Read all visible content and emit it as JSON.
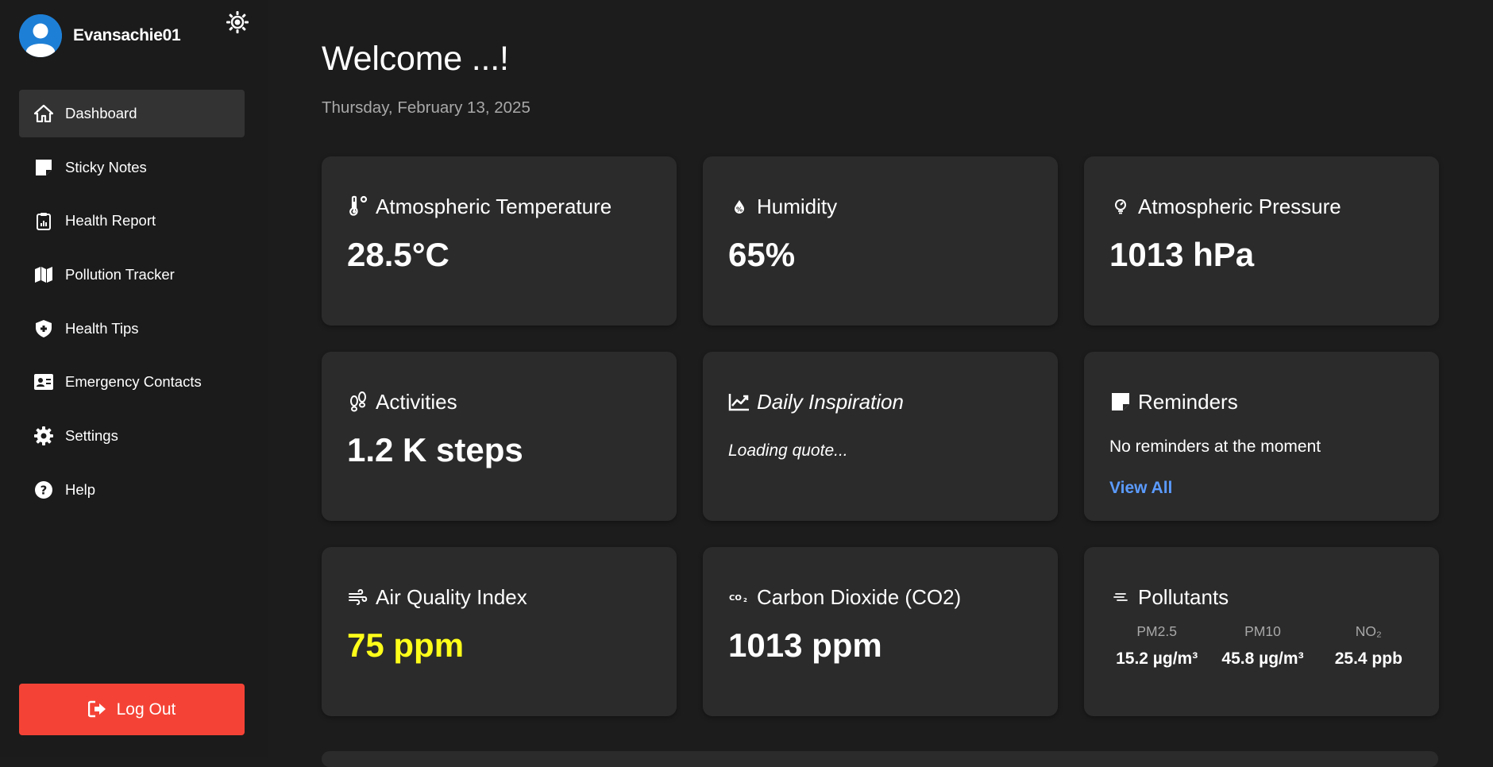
{
  "user": {
    "name": "Evansachie01"
  },
  "sidebar": {
    "items": [
      {
        "label": "Dashboard",
        "icon": "home-icon",
        "active": true
      },
      {
        "label": "Sticky Notes",
        "icon": "sticky-note-icon"
      },
      {
        "label": "Health Report",
        "icon": "clipboard-icon"
      },
      {
        "label": "Pollution Tracker",
        "icon": "map-icon"
      },
      {
        "label": "Health Tips",
        "icon": "shield-icon"
      },
      {
        "label": "Emergency Contacts",
        "icon": "contact-card-icon"
      },
      {
        "label": "Settings",
        "icon": "gear-icon"
      },
      {
        "label": "Help",
        "icon": "help-circle-icon"
      }
    ],
    "logout_label": "Log Out"
  },
  "main": {
    "welcome": "Welcome ...!",
    "date": "Thursday, February 13, 2025"
  },
  "cards": {
    "temperature": {
      "title": "Atmospheric Temperature",
      "value": "28.5°C"
    },
    "humidity": {
      "title": "Humidity",
      "value": "65%"
    },
    "pressure": {
      "title": "Atmospheric Pressure",
      "value": "1013 hPa"
    },
    "activities": {
      "title": "Activities",
      "value": "1.2 K steps"
    },
    "inspiration": {
      "title": "Daily Inspiration",
      "quote": "Loading quote..."
    },
    "reminders": {
      "title": "Reminders",
      "empty_text": "No reminders at the moment",
      "link": "View All"
    },
    "aqi": {
      "title": "Air Quality Index",
      "value": "75 ppm",
      "value_color": "#ffff1a"
    },
    "co2": {
      "title": "Carbon Dioxide (CO2)",
      "value": "1013 ppm"
    },
    "pollutants": {
      "title": "Pollutants",
      "items": [
        {
          "name": "PM2.5",
          "value": "15.2 µg/m³"
        },
        {
          "name": "PM10",
          "value": "45.8 µg/m³"
        },
        {
          "name": "NO₂",
          "value": "25.4 ppb"
        }
      ]
    }
  },
  "colors": {
    "accent": "#1e7fd6",
    "logout": "#f44336",
    "link": "#5b9bff",
    "card": "#2b2b2b",
    "background": "#1c1c1c"
  }
}
